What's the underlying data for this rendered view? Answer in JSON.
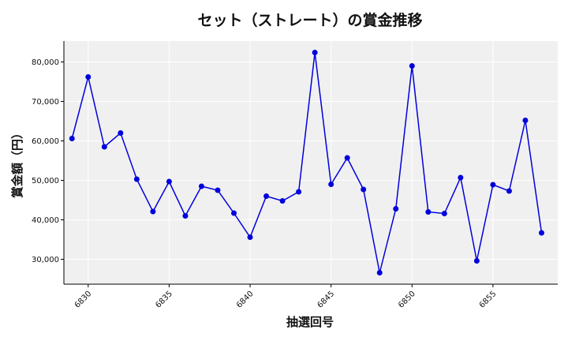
{
  "chart_data": {
    "type": "line",
    "title": "セット（ストレート）の賞金推移",
    "xlabel": "抽選回号",
    "ylabel": "賞金額（円）",
    "x": [
      6829,
      6830,
      6831,
      6832,
      6833,
      6834,
      6835,
      6836,
      6837,
      6838,
      6839,
      6840,
      6841,
      6842,
      6843,
      6844,
      6845,
      6846,
      6847,
      6848,
      6849,
      6850,
      6851,
      6852,
      6853,
      6854,
      6855,
      6856,
      6857,
      6858
    ],
    "series": [
      {
        "values": [
          60600,
          76200,
          58500,
          62000,
          50300,
          42100,
          49700,
          41000,
          48500,
          47500,
          41700,
          35600,
          46000,
          44800,
          47100,
          82400,
          49000,
          55700,
          47700,
          26600,
          42800,
          79000,
          42000,
          41600,
          50700,
          29600,
          48900,
          47300,
          65200,
          36700
        ],
        "color": "#0000dd"
      }
    ],
    "xticks": [
      6830,
      6835,
      6840,
      6845,
      6850,
      6855
    ],
    "yticks": [
      30000,
      40000,
      50000,
      60000,
      70000,
      80000
    ],
    "xlim": [
      6828.5,
      6859.0
    ],
    "ylim": [
      23700,
      85300
    ],
    "grid": true,
    "background": "#f0f0f0"
  }
}
